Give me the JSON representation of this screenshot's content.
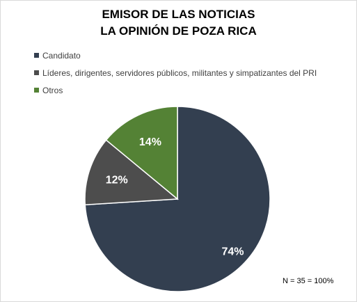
{
  "chart_data": {
    "type": "pie",
    "title": "EMISOR DE LAS NOTICIAS",
    "subtitle": "LA OPINIÓN DE POZA RICA",
    "categories": [
      "Candidato",
      "Líderes, dirigentes, servidores públicos, militantes y simpatizantes del PRI",
      "Otros"
    ],
    "values": [
      74,
      12,
      14
    ],
    "data_labels": [
      "74%",
      "12%",
      "14%"
    ],
    "colors": [
      "#333f50",
      "#4d4d4d",
      "#548235"
    ],
    "legend_placement": "top-left",
    "note": "N = 35 = 100%"
  }
}
